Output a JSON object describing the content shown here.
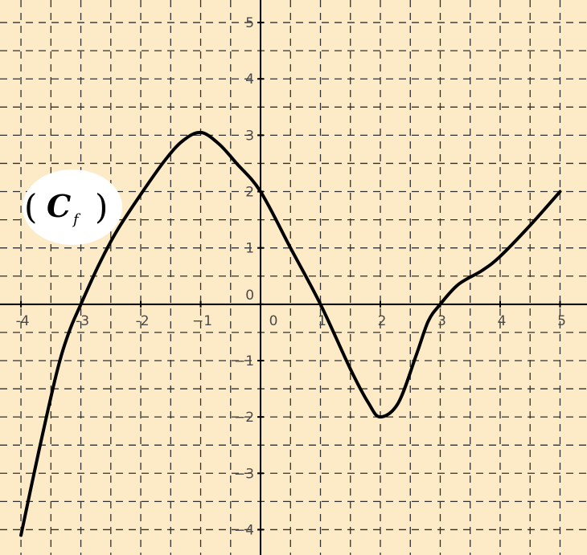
{
  "chart_data": {
    "type": "line",
    "title": "",
    "xlabel": "",
    "ylabel": "",
    "xlim": [
      -4.35,
      5.45
    ],
    "ylim": [
      -4.45,
      5.4
    ],
    "grid": true,
    "x_ticks": [
      -4,
      -3,
      -2,
      -1,
      0,
      1,
      2,
      3,
      4,
      5
    ],
    "x_tick_labels": [
      "-4",
      "-3",
      "-2",
      "−1",
      "0",
      "1",
      "2",
      "3",
      "4",
      "5"
    ],
    "y_ticks": [
      -4,
      -3,
      -2,
      -1,
      0,
      1,
      2,
      3,
      4,
      5
    ],
    "y_tick_labels": [
      "−4",
      "−3",
      "−2",
      "−1",
      "0",
      "1",
      "2",
      "3",
      "4",
      "5"
    ],
    "curve_label": {
      "main": "C",
      "sub": "f",
      "open": "(",
      "close": ")"
    },
    "series": [
      {
        "x": [
          -4,
          -3.7,
          -3.4,
          -3.2,
          -3,
          -2.7,
          -2.4,
          -2,
          -1.6,
          -1.3,
          -1,
          -0.7,
          -0.4,
          0,
          0.5,
          1,
          1.5,
          1.8,
          2,
          2.3,
          2.6,
          2.8,
          3,
          3.3,
          3.7,
          4,
          4.5,
          5
        ],
        "y": [
          -4.1,
          -2.6,
          -1.2,
          -0.5,
          0,
          0.7,
          1.3,
          1.95,
          2.55,
          2.9,
          3.05,
          2.85,
          2.5,
          2,
          1,
          0,
          -1.15,
          -1.75,
          -2,
          -1.75,
          -0.9,
          -0.3,
          0,
          0.35,
          0.6,
          0.85,
          1.4,
          2
        ]
      }
    ],
    "colors": {
      "background": "#fdebc8",
      "grid": "#2f2f2f",
      "axis": "#000000",
      "curve": "#000000",
      "label_bubble": "#ffffff"
    }
  }
}
